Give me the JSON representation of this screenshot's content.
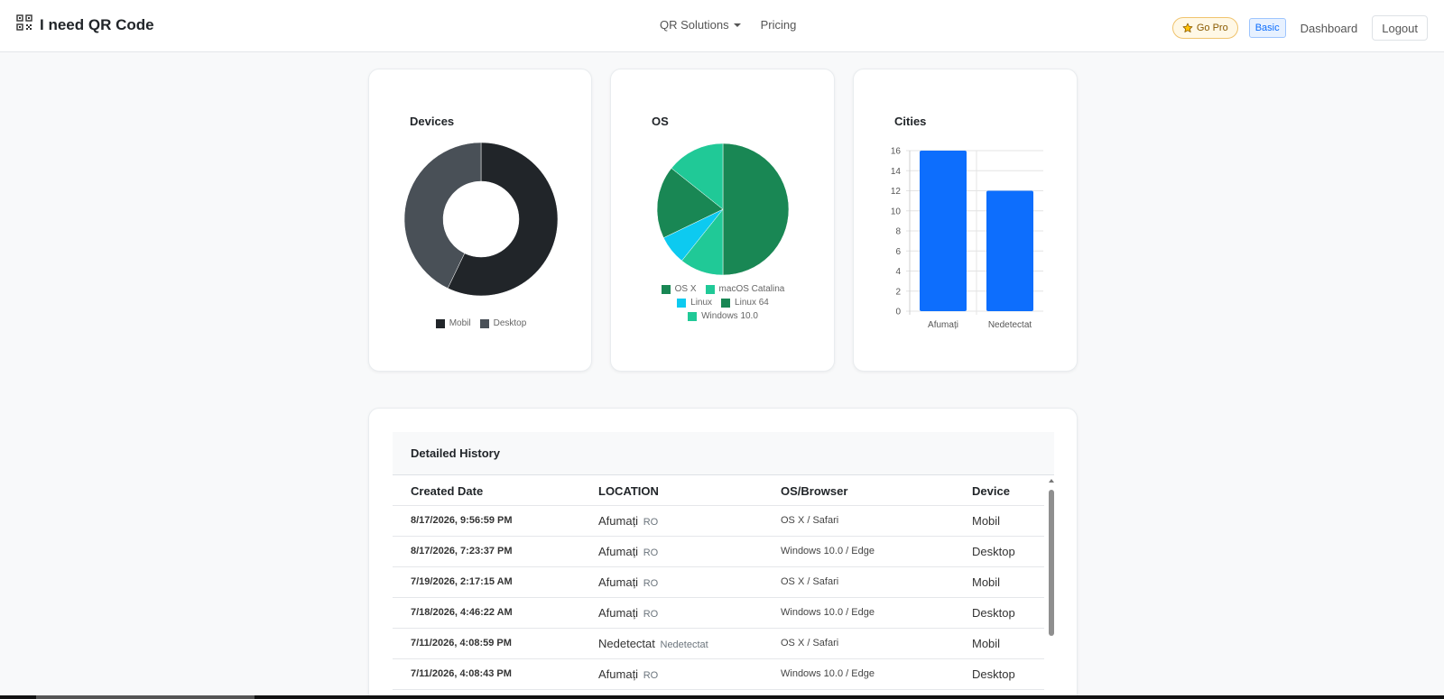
{
  "navbar": {
    "brand": "I need QR Code",
    "brand_icon": "qr-code-icon",
    "menu": [
      {
        "label": "QR Solutions",
        "has_dropdown": true
      },
      {
        "label": "Pricing",
        "has_dropdown": false
      }
    ],
    "go_pro": "Go Pro",
    "plan_badge": "Basic",
    "dashboard": "Dashboard",
    "logout": "Logout"
  },
  "cards": {
    "devices": {
      "title": "Devices"
    },
    "os": {
      "title": "OS"
    },
    "cities": {
      "title": "Cities"
    }
  },
  "chart_data": [
    {
      "type": "pie",
      "variant": "doughnut",
      "title": "Devices",
      "labels": [
        "Mobil",
        "Desktop"
      ],
      "values": [
        16,
        12
      ],
      "colors": [
        "#212529",
        "#495057"
      ],
      "legend": "bottom"
    },
    {
      "type": "pie",
      "title": "OS",
      "labels": [
        "OS X",
        "macOS Catalina",
        "Linux",
        "Linux 64",
        "Windows 10.0"
      ],
      "values": [
        14,
        3,
        2,
        5,
        4
      ],
      "colors": [
        "#198754",
        "#20c997",
        "#0dcaf0",
        "#198754",
        "#20c997"
      ],
      "legend": "bottom"
    },
    {
      "type": "bar",
      "title": "Cities",
      "categories": [
        "Afumați",
        "Nedetectat"
      ],
      "values": [
        16,
        12
      ],
      "color": "#0d6efd",
      "ylim": [
        0,
        16
      ],
      "yticks": [
        0,
        2,
        4,
        6,
        8,
        10,
        12,
        14,
        16
      ],
      "grid": true,
      "legend": "none"
    }
  ],
  "history": {
    "title": "Detailed History",
    "columns": [
      "Created Date",
      "LOCATION",
      "OS/Browser",
      "Device"
    ],
    "rows": [
      {
        "date": "8/17/2026, 9:56:59 PM",
        "city": "Afumați",
        "country": "RO",
        "os": "OS X / Safari",
        "device": "Mobil"
      },
      {
        "date": "8/17/2026, 7:23:37 PM",
        "city": "Afumați",
        "country": "RO",
        "os": "Windows 10.0 / Edge",
        "device": "Desktop"
      },
      {
        "date": "7/19/2026, 2:17:15 AM",
        "city": "Afumați",
        "country": "RO",
        "os": "OS X / Safari",
        "device": "Mobil"
      },
      {
        "date": "7/18/2026, 4:46:22 AM",
        "city": "Afumați",
        "country": "RO",
        "os": "Windows 10.0 / Edge",
        "device": "Desktop"
      },
      {
        "date": "7/11/2026, 4:08:59 PM",
        "city": "Nedetectat",
        "country": "Nedetectat",
        "os": "OS X / Safari",
        "device": "Mobil"
      },
      {
        "date": "7/11/2026, 4:08:43 PM",
        "city": "Afumați",
        "country": "RO",
        "os": "Windows 10.0 / Edge",
        "device": "Desktop"
      }
    ]
  }
}
